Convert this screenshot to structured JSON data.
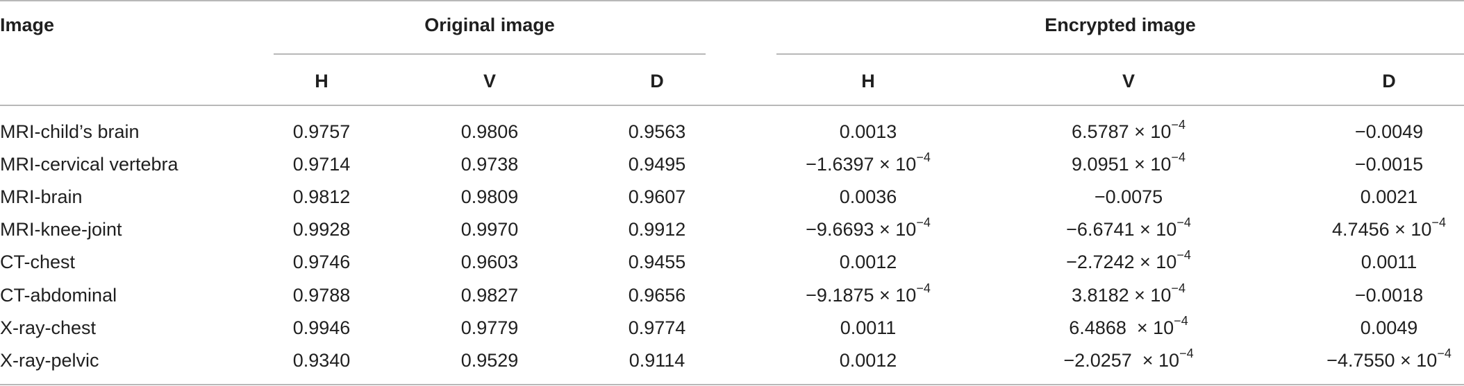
{
  "table": {
    "header": {
      "image_label": "Image",
      "group_original": "Original image",
      "group_encrypted": "Encrypted image",
      "sub_columns": [
        "H",
        "V",
        "D",
        "H",
        "V",
        "D"
      ]
    },
    "rows": [
      {
        "image": "MRI-child’s brain",
        "orig": [
          "0.9757",
          "0.9806",
          "0.9563"
        ],
        "enc": [
          "0.0013",
          "6.5787 × 10<sup>−4</sup>",
          "−0.0049"
        ]
      },
      {
        "image": "MRI-cervical vertebra",
        "orig": [
          "0.9714",
          "0.9738",
          "0.9495"
        ],
        "enc": [
          "−1.6397 × 10<sup>−4</sup>",
          "9.0951 × 10<sup>−4</sup>",
          "−0.0015"
        ]
      },
      {
        "image": "MRI-brain",
        "orig": [
          "0.9812",
          "0.9809",
          "0.9607"
        ],
        "enc": [
          "0.0036",
          "−0.0075",
          "0.0021"
        ]
      },
      {
        "image": "MRI-knee-joint",
        "orig": [
          "0.9928",
          "0.9970",
          "0.9912"
        ],
        "enc": [
          "−9.6693 × 10<sup>−4</sup>",
          "−6.6741 × 10<sup>−4</sup>",
          "4.7456 × 10<sup>−4</sup>"
        ]
      },
      {
        "image": "CT-chest",
        "orig": [
          "0.9746",
          "0.9603",
          "0.9455"
        ],
        "enc": [
          "0.0012",
          "−2.7242 × 10<sup>−4</sup>",
          "0.0011"
        ]
      },
      {
        "image": "CT-abdominal",
        "orig": [
          "0.9788",
          "0.9827",
          "0.9656"
        ],
        "enc": [
          "−9.1875 × 10<sup>−4</sup>",
          "3.8182 × 10<sup>−4</sup>",
          "−0.0018"
        ]
      },
      {
        "image": "X-ray-chest",
        "orig": [
          "0.9946",
          "0.9779",
          "0.9774"
        ],
        "enc": [
          "0.0011",
          "6.4868  × 10<sup>−4</sup>",
          "0.0049"
        ]
      },
      {
        "image": "X-ray-pelvic",
        "orig": [
          "0.9340",
          "0.9529",
          "0.9114"
        ],
        "enc": [
          "0.0012",
          "−2.0257  × 10<sup>−4</sup>",
          "−4.7550 × 10<sup>−4</sup>"
        ]
      }
    ]
  }
}
